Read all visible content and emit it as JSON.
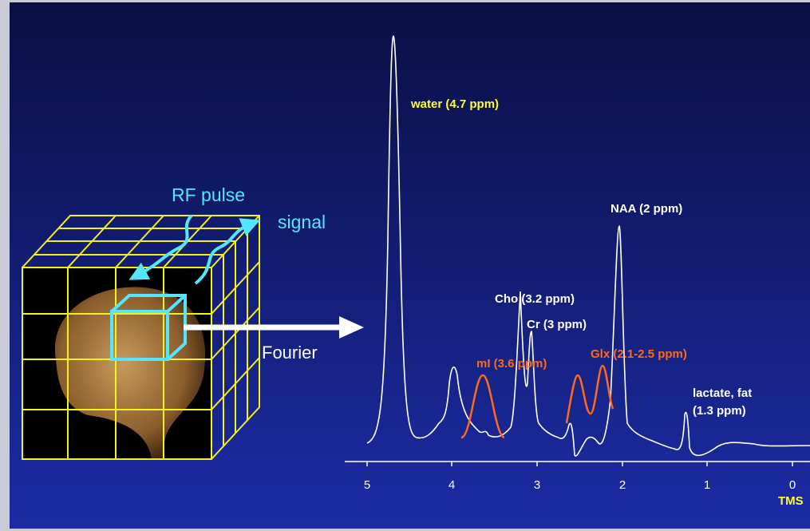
{
  "annotations": {
    "rf_pulse": "RF pulse",
    "signal": "signal",
    "fourier": "Fourier",
    "water": "water (4.7 ppm)",
    "naa": "NAA (2 ppm)",
    "cho": "Cho (3.2 ppm)",
    "cr": "Cr (3 ppm)",
    "mi": "mI (3.6 ppm)",
    "glx": "Glx (2.1-2.5 ppm)",
    "lactate": [
      "lactate, fat",
      "(1.3 ppm)"
    ]
  },
  "axis": {
    "ticks": [
      "5",
      "4",
      "3",
      "2",
      "1",
      "0"
    ],
    "reference": "TMS"
  }
}
